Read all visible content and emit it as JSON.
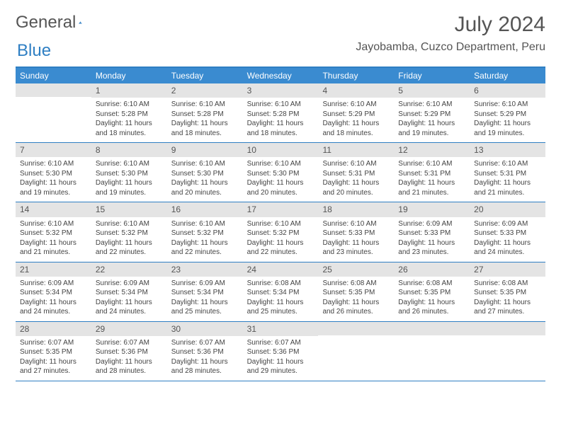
{
  "logo": {
    "text1": "General",
    "text2": "Blue"
  },
  "title": "July 2024",
  "location": "Jayobamba, Cuzco Department, Peru",
  "colors": {
    "header_bg": "#3a8bd0",
    "header_text": "#ffffff",
    "border": "#2f7fc3",
    "daynum_bg": "#e4e4e4",
    "text": "#444444",
    "title_color": "#555555"
  },
  "day_headers": [
    "Sunday",
    "Monday",
    "Tuesday",
    "Wednesday",
    "Thursday",
    "Friday",
    "Saturday"
  ],
  "weeks": [
    [
      {
        "num": "",
        "lines": []
      },
      {
        "num": "1",
        "lines": [
          "Sunrise: 6:10 AM",
          "Sunset: 5:28 PM",
          "Daylight: 11 hours",
          "and 18 minutes."
        ]
      },
      {
        "num": "2",
        "lines": [
          "Sunrise: 6:10 AM",
          "Sunset: 5:28 PM",
          "Daylight: 11 hours",
          "and 18 minutes."
        ]
      },
      {
        "num": "3",
        "lines": [
          "Sunrise: 6:10 AM",
          "Sunset: 5:28 PM",
          "Daylight: 11 hours",
          "and 18 minutes."
        ]
      },
      {
        "num": "4",
        "lines": [
          "Sunrise: 6:10 AM",
          "Sunset: 5:29 PM",
          "Daylight: 11 hours",
          "and 18 minutes."
        ]
      },
      {
        "num": "5",
        "lines": [
          "Sunrise: 6:10 AM",
          "Sunset: 5:29 PM",
          "Daylight: 11 hours",
          "and 19 minutes."
        ]
      },
      {
        "num": "6",
        "lines": [
          "Sunrise: 6:10 AM",
          "Sunset: 5:29 PM",
          "Daylight: 11 hours",
          "and 19 minutes."
        ]
      }
    ],
    [
      {
        "num": "7",
        "lines": [
          "Sunrise: 6:10 AM",
          "Sunset: 5:30 PM",
          "Daylight: 11 hours",
          "and 19 minutes."
        ]
      },
      {
        "num": "8",
        "lines": [
          "Sunrise: 6:10 AM",
          "Sunset: 5:30 PM",
          "Daylight: 11 hours",
          "and 19 minutes."
        ]
      },
      {
        "num": "9",
        "lines": [
          "Sunrise: 6:10 AM",
          "Sunset: 5:30 PM",
          "Daylight: 11 hours",
          "and 20 minutes."
        ]
      },
      {
        "num": "10",
        "lines": [
          "Sunrise: 6:10 AM",
          "Sunset: 5:30 PM",
          "Daylight: 11 hours",
          "and 20 minutes."
        ]
      },
      {
        "num": "11",
        "lines": [
          "Sunrise: 6:10 AM",
          "Sunset: 5:31 PM",
          "Daylight: 11 hours",
          "and 20 minutes."
        ]
      },
      {
        "num": "12",
        "lines": [
          "Sunrise: 6:10 AM",
          "Sunset: 5:31 PM",
          "Daylight: 11 hours",
          "and 21 minutes."
        ]
      },
      {
        "num": "13",
        "lines": [
          "Sunrise: 6:10 AM",
          "Sunset: 5:31 PM",
          "Daylight: 11 hours",
          "and 21 minutes."
        ]
      }
    ],
    [
      {
        "num": "14",
        "lines": [
          "Sunrise: 6:10 AM",
          "Sunset: 5:32 PM",
          "Daylight: 11 hours",
          "and 21 minutes."
        ]
      },
      {
        "num": "15",
        "lines": [
          "Sunrise: 6:10 AM",
          "Sunset: 5:32 PM",
          "Daylight: 11 hours",
          "and 22 minutes."
        ]
      },
      {
        "num": "16",
        "lines": [
          "Sunrise: 6:10 AM",
          "Sunset: 5:32 PM",
          "Daylight: 11 hours",
          "and 22 minutes."
        ]
      },
      {
        "num": "17",
        "lines": [
          "Sunrise: 6:10 AM",
          "Sunset: 5:32 PM",
          "Daylight: 11 hours",
          "and 22 minutes."
        ]
      },
      {
        "num": "18",
        "lines": [
          "Sunrise: 6:10 AM",
          "Sunset: 5:33 PM",
          "Daylight: 11 hours",
          "and 23 minutes."
        ]
      },
      {
        "num": "19",
        "lines": [
          "Sunrise: 6:09 AM",
          "Sunset: 5:33 PM",
          "Daylight: 11 hours",
          "and 23 minutes."
        ]
      },
      {
        "num": "20",
        "lines": [
          "Sunrise: 6:09 AM",
          "Sunset: 5:33 PM",
          "Daylight: 11 hours",
          "and 24 minutes."
        ]
      }
    ],
    [
      {
        "num": "21",
        "lines": [
          "Sunrise: 6:09 AM",
          "Sunset: 5:34 PM",
          "Daylight: 11 hours",
          "and 24 minutes."
        ]
      },
      {
        "num": "22",
        "lines": [
          "Sunrise: 6:09 AM",
          "Sunset: 5:34 PM",
          "Daylight: 11 hours",
          "and 24 minutes."
        ]
      },
      {
        "num": "23",
        "lines": [
          "Sunrise: 6:09 AM",
          "Sunset: 5:34 PM",
          "Daylight: 11 hours",
          "and 25 minutes."
        ]
      },
      {
        "num": "24",
        "lines": [
          "Sunrise: 6:08 AM",
          "Sunset: 5:34 PM",
          "Daylight: 11 hours",
          "and 25 minutes."
        ]
      },
      {
        "num": "25",
        "lines": [
          "Sunrise: 6:08 AM",
          "Sunset: 5:35 PM",
          "Daylight: 11 hours",
          "and 26 minutes."
        ]
      },
      {
        "num": "26",
        "lines": [
          "Sunrise: 6:08 AM",
          "Sunset: 5:35 PM",
          "Daylight: 11 hours",
          "and 26 minutes."
        ]
      },
      {
        "num": "27",
        "lines": [
          "Sunrise: 6:08 AM",
          "Sunset: 5:35 PM",
          "Daylight: 11 hours",
          "and 27 minutes."
        ]
      }
    ],
    [
      {
        "num": "28",
        "lines": [
          "Sunrise: 6:07 AM",
          "Sunset: 5:35 PM",
          "Daylight: 11 hours",
          "and 27 minutes."
        ]
      },
      {
        "num": "29",
        "lines": [
          "Sunrise: 6:07 AM",
          "Sunset: 5:36 PM",
          "Daylight: 11 hours",
          "and 28 minutes."
        ]
      },
      {
        "num": "30",
        "lines": [
          "Sunrise: 6:07 AM",
          "Sunset: 5:36 PM",
          "Daylight: 11 hours",
          "and 28 minutes."
        ]
      },
      {
        "num": "31",
        "lines": [
          "Sunrise: 6:07 AM",
          "Sunset: 5:36 PM",
          "Daylight: 11 hours",
          "and 29 minutes."
        ]
      },
      {
        "num": "",
        "lines": []
      },
      {
        "num": "",
        "lines": []
      },
      {
        "num": "",
        "lines": []
      }
    ]
  ]
}
